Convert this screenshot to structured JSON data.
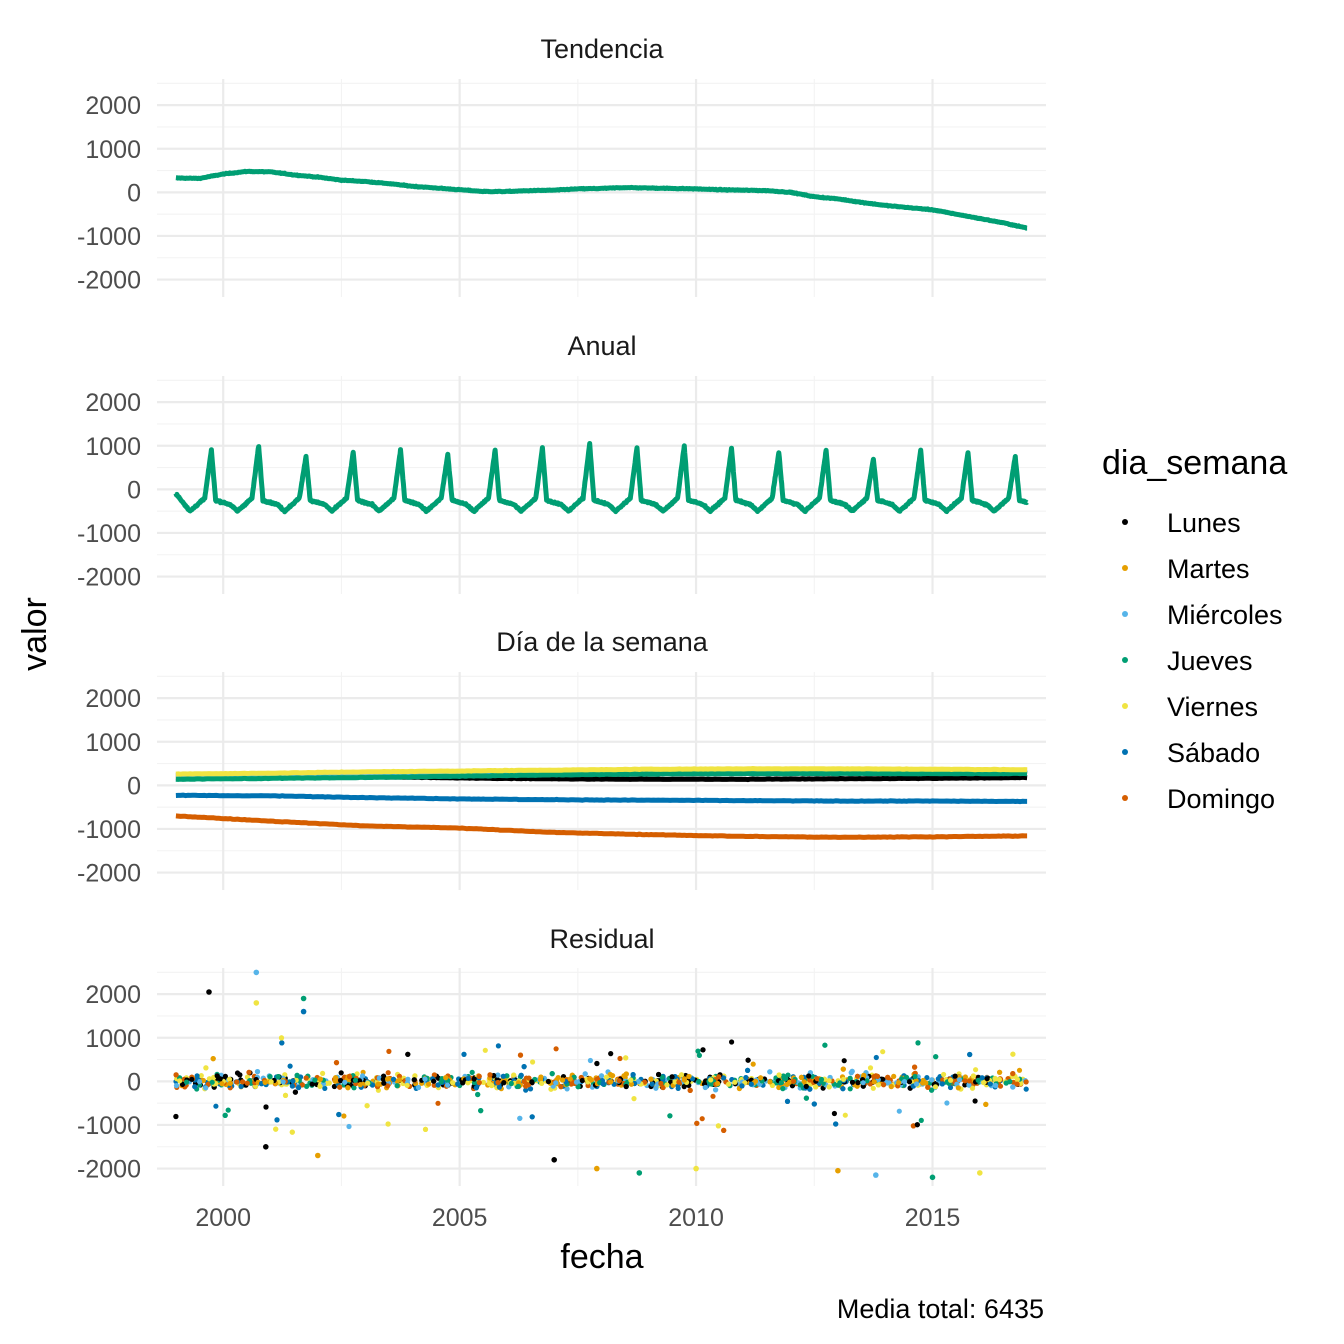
{
  "chart_data": {
    "type": "line",
    "facet_by": "componente",
    "facets": [
      "Tendencia",
      "Anual",
      "Día de la semana",
      "Residual"
    ],
    "xlabel": "fecha",
    "ylabel": "valor",
    "caption": "Media total: 6435",
    "xlim": [
      1998.6,
      2017.4
    ],
    "x_ticks": [
      2000,
      2005,
      2010,
      2015
    ],
    "x_tick_labels": [
      "2000",
      "2005",
      "2010",
      "2015"
    ],
    "ylim": [
      -2400,
      2600
    ],
    "y_ticks": [
      -2000,
      -1000,
      0,
      1000,
      2000
    ],
    "y_tick_labels": [
      "-2000",
      "-1000",
      "0",
      "1000",
      "2000"
    ],
    "legend": {
      "title": "dia_semana",
      "position": "right",
      "entries": [
        {
          "label": "Lunes",
          "color": "#000000"
        },
        {
          "label": "Martes",
          "color": "#E69F00"
        },
        {
          "label": "Miércoles",
          "color": "#56B4E9"
        },
        {
          "label": "Jueves",
          "color": "#009E73"
        },
        {
          "label": "Viernes",
          "color": "#F0E442"
        },
        {
          "label": "Sábado",
          "color": "#0072B2"
        },
        {
          "label": "Domingo",
          "color": "#D55E00"
        }
      ]
    },
    "trend": {
      "x": [
        1999.0,
        1999.5,
        2000.0,
        2000.5,
        2001.0,
        2001.5,
        2002.0,
        2002.5,
        2003.0,
        2003.5,
        2004.0,
        2004.5,
        2005.0,
        2005.5,
        2006.0,
        2006.5,
        2007.0,
        2007.5,
        2008.0,
        2008.5,
        2009.0,
        2009.5,
        2010.0,
        2010.5,
        2011.0,
        2011.5,
        2012.0,
        2012.5,
        2013.0,
        2013.5,
        2014.0,
        2014.5,
        2015.0,
        2015.5,
        2016.0,
        2016.5,
        2017.0
      ],
      "y": [
        330,
        320,
        420,
        480,
        470,
        400,
        350,
        280,
        250,
        200,
        140,
        100,
        60,
        20,
        20,
        40,
        50,
        80,
        90,
        110,
        100,
        90,
        80,
        60,
        50,
        40,
        0,
        -100,
        -150,
        -230,
        -300,
        -350,
        -400,
        -500,
        -600,
        -700,
        -820
      ]
    },
    "annual": {
      "peak_years": [
        1999.75,
        2000.75,
        2001.75,
        2002.75,
        2003.75,
        2004.75,
        2005.75,
        2006.75,
        2007.75,
        2008.75,
        2009.75,
        2010.75,
        2011.75,
        2012.75,
        2013.75,
        2014.75,
        2015.75,
        2016.75
      ],
      "peak_values": [
        900,
        1000,
        750,
        850,
        900,
        800,
        900,
        950,
        1050,
        950,
        1000,
        950,
        850,
        900,
        700,
        900,
        850,
        750
      ],
      "trough_value": -500,
      "plateau_value": -300,
      "start_value": -100,
      "end_value": -200
    },
    "weekday": {
      "x": [
        1999.0,
        2001.0,
        2003.0,
        2005.0,
        2007.0,
        2009.0,
        2011.0,
        2013.0,
        2015.0,
        2017.0
      ],
      "series": [
        {
          "name": "Lunes",
          "values": [
            230,
            210,
            200,
            170,
            150,
            140,
            140,
            150,
            160,
            180
          ]
        },
        {
          "name": "Martes",
          "values": [
            190,
            220,
            250,
            280,
            300,
            320,
            330,
            340,
            340,
            330
          ]
        },
        {
          "name": "Miércoles",
          "values": [
            170,
            200,
            230,
            260,
            280,
            300,
            300,
            300,
            300,
            290
          ]
        },
        {
          "name": "Jueves",
          "values": [
            140,
            160,
            180,
            210,
            240,
            260,
            270,
            270,
            270,
            270
          ]
        },
        {
          "name": "Viernes",
          "values": [
            260,
            280,
            310,
            330,
            350,
            370,
            380,
            380,
            370,
            360
          ]
        },
        {
          "name": "Sábado",
          "values": [
            -230,
            -240,
            -280,
            -310,
            -330,
            -340,
            -350,
            -360,
            -360,
            -370
          ]
        },
        {
          "name": "Domingo",
          "values": [
            -700,
            -820,
            -930,
            -980,
            -1080,
            -1130,
            -1170,
            -1190,
            -1180,
            -1160
          ]
        }
      ]
    },
    "residual": {
      "x_range": [
        1999.0,
        2017.0
      ],
      "typical_range": [
        -300,
        300
      ],
      "min": -2200,
      "max": 2500,
      "notable_points": [
        {
          "x": 1999.7,
          "y": 2050,
          "series": "Lunes"
        },
        {
          "x": 2000.7,
          "y": 2500,
          "series": "Miércoles"
        },
        {
          "x": 2000.7,
          "y": 1800,
          "series": "Viernes"
        },
        {
          "x": 2001.7,
          "y": 1900,
          "series": "Jueves"
        },
        {
          "x": 2001.7,
          "y": 1600,
          "series": "Sábado"
        },
        {
          "x": 2000.9,
          "y": -1500,
          "series": "Lunes"
        },
        {
          "x": 2002.0,
          "y": -1700,
          "series": "Martes"
        },
        {
          "x": 2007.0,
          "y": -1800,
          "series": "Lunes"
        },
        {
          "x": 2007.9,
          "y": -2000,
          "series": "Martes"
        },
        {
          "x": 2008.8,
          "y": -2100,
          "series": "Jueves"
        },
        {
          "x": 2010.0,
          "y": -2000,
          "series": "Viernes"
        },
        {
          "x": 2013.0,
          "y": -2050,
          "series": "Martes"
        },
        {
          "x": 2013.8,
          "y": -2150,
          "series": "Miércoles"
        },
        {
          "x": 2015.0,
          "y": -2200,
          "series": "Jueves"
        },
        {
          "x": 2016.0,
          "y": -2100,
          "series": "Viernes"
        }
      ]
    }
  }
}
